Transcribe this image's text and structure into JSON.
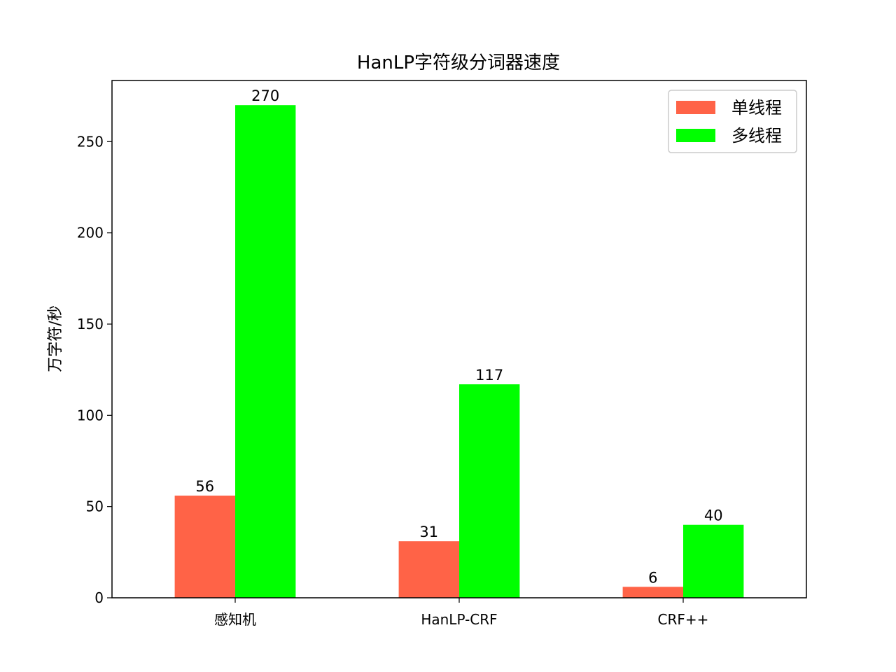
{
  "chart_data": {
    "type": "bar",
    "title": "HanLP字符级分词器速度",
    "xlabel": "",
    "ylabel": "万字符/秒",
    "categories": [
      "感知机",
      "HanLP-CRF",
      "CRF++"
    ],
    "series": [
      {
        "name": "单线程",
        "values": [
          56,
          31,
          6
        ],
        "color": "#ff6347"
      },
      {
        "name": "多线程",
        "values": [
          270,
          117,
          40
        ],
        "color": "#00ff00"
      }
    ],
    "ylim": [
      0,
      283.5
    ],
    "yticks": [
      0,
      50,
      100,
      150,
      200,
      250
    ],
    "grid": false,
    "legend_position": "top-right"
  }
}
